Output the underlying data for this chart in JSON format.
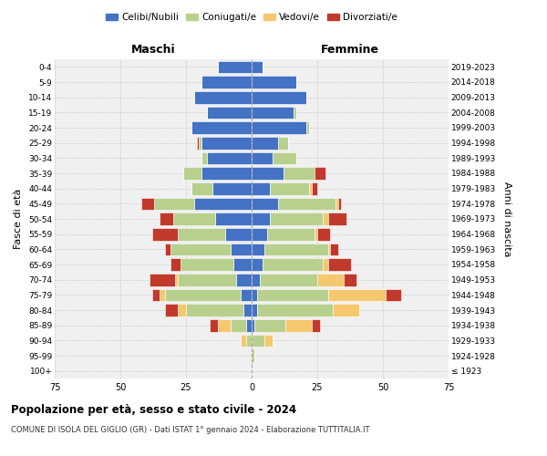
{
  "age_groups": [
    "100+",
    "95-99",
    "90-94",
    "85-89",
    "80-84",
    "75-79",
    "70-74",
    "65-69",
    "60-64",
    "55-59",
    "50-54",
    "45-49",
    "40-44",
    "35-39",
    "30-34",
    "25-29",
    "20-24",
    "15-19",
    "10-14",
    "5-9",
    "0-4"
  ],
  "birth_years": [
    "≤ 1923",
    "1924-1928",
    "1929-1933",
    "1934-1938",
    "1939-1943",
    "1944-1948",
    "1949-1953",
    "1954-1958",
    "1959-1963",
    "1964-1968",
    "1969-1973",
    "1974-1978",
    "1979-1983",
    "1984-1988",
    "1989-1993",
    "1994-1998",
    "1999-2003",
    "2004-2008",
    "2009-2013",
    "2014-2018",
    "2019-2023"
  ],
  "colors": {
    "celibe": "#4472C4",
    "coniugato": "#B8D08D",
    "vedovo": "#F5C86E",
    "divorziato": "#C0392B"
  },
  "maschi": {
    "celibe": [
      0,
      0,
      0,
      2,
      3,
      4,
      6,
      7,
      8,
      10,
      14,
      22,
      15,
      19,
      17,
      19,
      23,
      17,
      22,
      19,
      13
    ],
    "coniugato": [
      0,
      0,
      2,
      6,
      22,
      29,
      22,
      20,
      23,
      18,
      16,
      15,
      8,
      7,
      2,
      1,
      0,
      0,
      0,
      0,
      0
    ],
    "vedovo": [
      0,
      0,
      2,
      5,
      3,
      2,
      1,
      0,
      0,
      0,
      0,
      0,
      0,
      0,
      0,
      0,
      0,
      0,
      0,
      0,
      0
    ],
    "divorziato": [
      0,
      0,
      0,
      3,
      5,
      3,
      10,
      4,
      2,
      10,
      5,
      5,
      0,
      0,
      0,
      1,
      0,
      0,
      0,
      0,
      0
    ]
  },
  "femmine": {
    "celibe": [
      0,
      0,
      0,
      1,
      2,
      2,
      3,
      4,
      5,
      6,
      7,
      10,
      7,
      12,
      8,
      10,
      21,
      16,
      21,
      17,
      4
    ],
    "coniugato": [
      0,
      1,
      5,
      12,
      29,
      27,
      22,
      23,
      24,
      18,
      20,
      22,
      15,
      12,
      9,
      4,
      1,
      1,
      0,
      0,
      0
    ],
    "vedovo": [
      0,
      0,
      3,
      10,
      10,
      22,
      10,
      2,
      1,
      1,
      2,
      1,
      1,
      0,
      0,
      0,
      0,
      0,
      0,
      0,
      0
    ],
    "divorziato": [
      0,
      0,
      0,
      3,
      0,
      6,
      5,
      9,
      3,
      5,
      7,
      1,
      2,
      4,
      0,
      0,
      0,
      0,
      0,
      0,
      0
    ]
  },
  "xlim": 75,
  "title": "Popolazione per età, sesso e stato civile - 2024",
  "subtitle": "COMUNE DI ISOLA DEL GIGLIO (GR) - Dati ISTAT 1° gennaio 2024 - Elaborazione TUTTITALIA.IT",
  "xlabel_left": "Maschi",
  "xlabel_right": "Femmine",
  "ylabel_left": "Fasce di età",
  "ylabel_right": "Anni di nascita",
  "legend_labels": [
    "Celibi/Nubili",
    "Coniugati/e",
    "Vedovi/e",
    "Divorziati/e"
  ],
  "bg_color": "#ffffff",
  "grid_color": "#cccccc",
  "facecolor": "#f0f0f0"
}
